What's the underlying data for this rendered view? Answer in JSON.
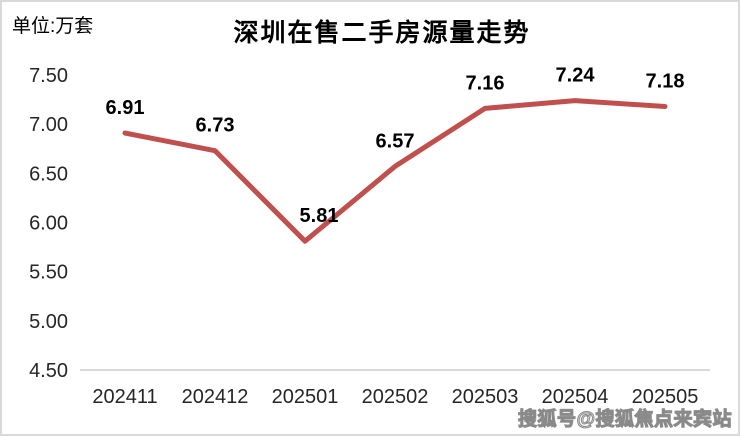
{
  "page": {
    "unit_label": "单位:万套",
    "watermark": "搜狐号@搜狐焦点来宾站"
  },
  "chart_data": {
    "type": "line",
    "title": "深圳在售二手房源量走势",
    "categories": [
      "202411",
      "202412",
      "202501",
      "202502",
      "202503",
      "202504",
      "202505"
    ],
    "values": [
      6.91,
      6.73,
      5.81,
      6.57,
      7.16,
      7.24,
      7.18
    ],
    "data_labels": [
      "6.91",
      "6.73",
      "5.81",
      "6.57",
      "7.16",
      "7.24",
      "7.18"
    ],
    "y_tick_labels": [
      "7.50",
      "7.00",
      "6.50",
      "6.00",
      "5.50",
      "5.00",
      "4.50"
    ],
    "y_tick_values": [
      7.5,
      7.0,
      6.5,
      6.0,
      5.5,
      5.0,
      4.5
    ],
    "ylim": [
      4.5,
      7.5
    ],
    "xlabel": "",
    "ylabel": "",
    "grid": false,
    "legend": "none",
    "line_color": "#c0504d",
    "axis_line_color": "#d9d9d9",
    "tick_label_color": "#262626",
    "data_label_color": "#000000",
    "label_dx": [
      0,
      0,
      14,
      0,
      0,
      0,
      0
    ]
  }
}
